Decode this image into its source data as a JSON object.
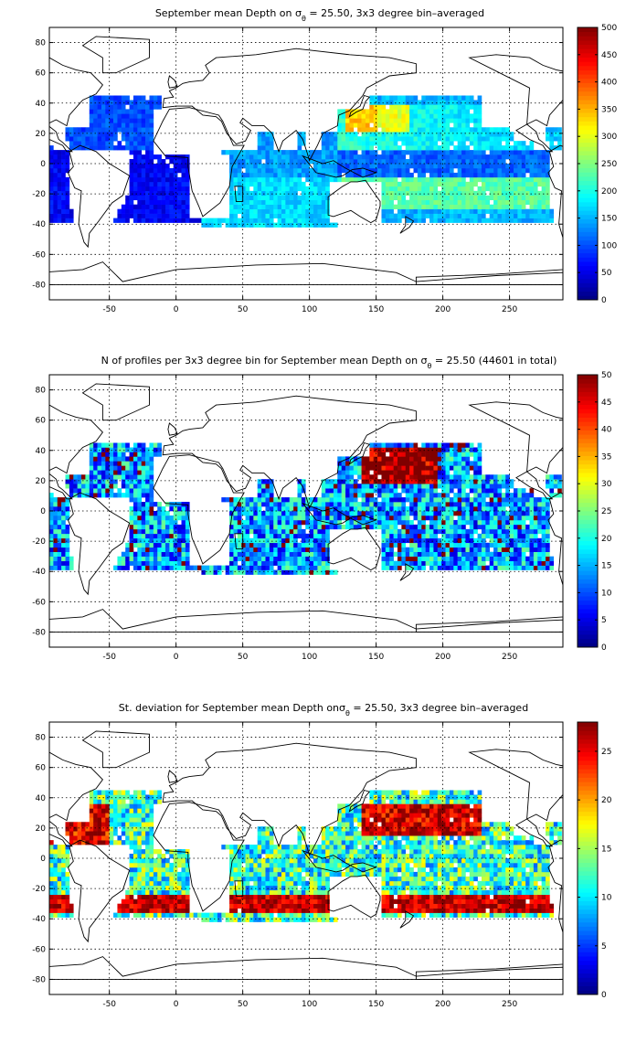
{
  "chart_data": [
    {
      "type": "heatmap",
      "title": "September mean Depth on σθ = 25.50, 3x3 degree bin–averaged",
      "title_parts": {
        "before": "September mean Depth on σ",
        "subscript": "θ",
        "after": " = 25.50, 3x3 degree bin–averaged"
      },
      "xlim": [
        -95,
        290
      ],
      "ylim": [
        -90,
        90
      ],
      "xticks": [
        -50,
        0,
        50,
        100,
        150,
        200,
        250
      ],
      "yticks": [
        -80,
        -60,
        -40,
        -20,
        0,
        20,
        40,
        60,
        80
      ],
      "grid": true,
      "colorbar": {
        "min": 0,
        "max": 500,
        "ticks": [
          0,
          50,
          100,
          150,
          200,
          250,
          300,
          350,
          400,
          450,
          500
        ]
      },
      "colormap": "jet",
      "variable": "depth",
      "field_summary": [
        {
          "region": "North Pacific subtropical gyre (Kuroshio extension)",
          "lon_range": [
            130,
            170
          ],
          "lat_range": [
            22,
            36
          ],
          "approx_value": 320
        },
        {
          "region": "North Pacific band",
          "lon_range": [
            150,
            270
          ],
          "lat_range": [
            10,
            40
          ],
          "approx_value": 200
        },
        {
          "region": "South Pacific subtropics",
          "lon_range": [
            150,
            280
          ],
          "lat_range": [
            -30,
            -10
          ],
          "approx_value": 230
        },
        {
          "region": "Equatorial Pacific",
          "lon_range": [
            140,
            280
          ],
          "lat_range": [
            -5,
            5
          ],
          "approx_value": 120
        },
        {
          "region": "North Atlantic",
          "lon_range": [
            -80,
            -10
          ],
          "lat_range": [
            10,
            45
          ],
          "approx_value": 80
        },
        {
          "region": "Indian Ocean",
          "lon_range": [
            40,
            115
          ],
          "lat_range": [
            -40,
            20
          ],
          "approx_value": 150
        }
      ]
    },
    {
      "type": "heatmap",
      "title": "N of profiles per 3x3 degree bin for September mean Depth on σθ = 25.50 (44601 in total)",
      "title_parts": {
        "before": "N of profiles per 3x3 degree bin for September mean Depth on σ",
        "subscript": "θ",
        "after": " = 25.50 (44601 in total)"
      },
      "xlim": [
        -95,
        290
      ],
      "ylim": [
        -90,
        90
      ],
      "xticks": [
        -50,
        0,
        50,
        100,
        150,
        200,
        250
      ],
      "yticks": [
        -80,
        -60,
        -40,
        -20,
        0,
        20,
        40,
        60,
        80
      ],
      "grid": true,
      "colorbar": {
        "min": 0,
        "max": 50,
        "ticks": [
          0,
          5,
          10,
          15,
          20,
          25,
          30,
          35,
          40,
          45,
          50
        ]
      },
      "colormap": "jet",
      "variable": "count",
      "total_profiles": 44601,
      "field_summary": [
        {
          "region": "Northwest Pacific",
          "lon_range": [
            140,
            190
          ],
          "lat_range": [
            20,
            40
          ],
          "approx_value": 50
        },
        {
          "region": "Pacific interior",
          "lon_range": [
            150,
            280
          ],
          "lat_range": [
            -35,
            45
          ],
          "approx_value": 22
        },
        {
          "region": "Atlantic",
          "lon_range": [
            -80,
            10
          ],
          "lat_range": [
            -35,
            45
          ],
          "approx_value": 18
        },
        {
          "region": "Indian Ocean",
          "lon_range": [
            40,
            115
          ],
          "lat_range": [
            -40,
            25
          ],
          "approx_value": 15
        }
      ]
    },
    {
      "type": "heatmap",
      "title": "St. deviation for September mean Depth onσθ = 25.50, 3x3 degree bin–averaged",
      "title_parts": {
        "before": "St. deviation for September mean Depth onσ",
        "subscript": "θ",
        "after": " = 25.50, 3x3 degree bin–averaged"
      },
      "xlim": [
        -95,
        290
      ],
      "ylim": [
        -90,
        90
      ],
      "xticks": [
        -50,
        0,
        50,
        100,
        150,
        200,
        250
      ],
      "yticks": [
        -80,
        -60,
        -40,
        -20,
        0,
        20,
        40,
        60,
        80
      ],
      "grid": true,
      "colorbar": {
        "min": 0,
        "max": 28,
        "ticks": [
          0,
          5,
          10,
          15,
          20,
          25
        ]
      },
      "colormap": "jet",
      "variable": "stddev",
      "field_summary": [
        {
          "region": "North Pacific high-variability band",
          "lon_range": [
            140,
            230
          ],
          "lat_range": [
            15,
            35
          ],
          "approx_value": 27
        },
        {
          "region": "Southern high-variability band",
          "lon_range": [
            140,
            280
          ],
          "lat_range": [
            -35,
            -25
          ],
          "approx_value": 27
        },
        {
          "region": "Southern Indian band",
          "lon_range": [
            40,
            120
          ],
          "lat_range": [
            -35,
            -25
          ],
          "approx_value": 27
        },
        {
          "region": "Interior oceans",
          "lon_range": [
            -80,
            280
          ],
          "lat_range": [
            -20,
            20
          ],
          "approx_value": 12
        }
      ]
    }
  ]
}
